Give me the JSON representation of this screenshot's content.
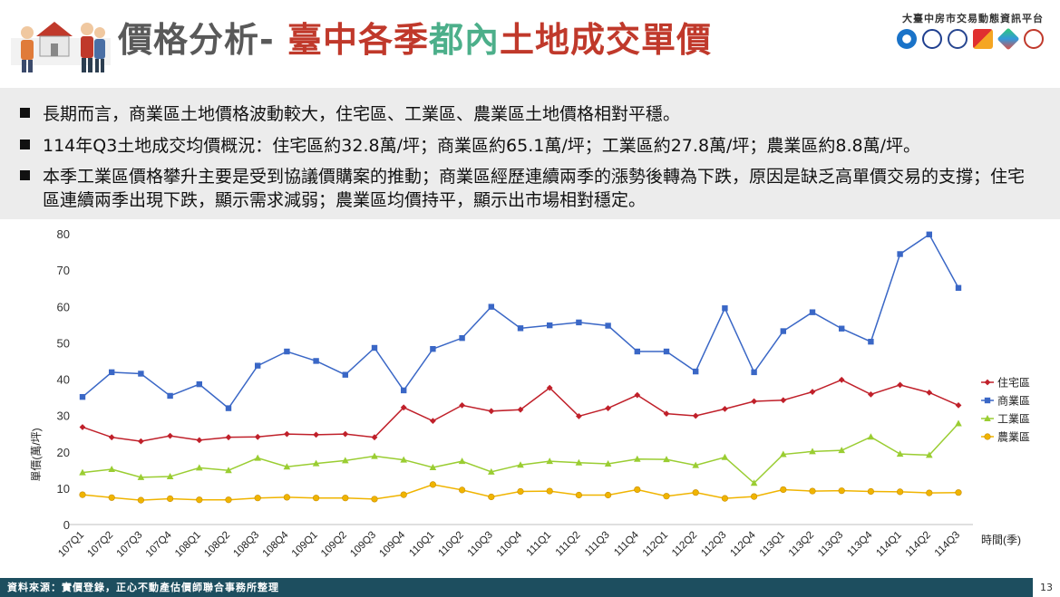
{
  "header": {
    "title_prefix": "價格分析- ",
    "title_part1": "臺中各季",
    "title_part2": "都內",
    "title_part3": "土地成交單價",
    "org_name": "大臺中房市交易動態資訊平台",
    "brand_colors": {
      "title_gray": "#595959",
      "title_red": "#c0392b",
      "title_green": "#4caf8a"
    }
  },
  "bullets": [
    "長期而言，商業區土地價格波動較大，住宅區、工業區、農業區土地價格相對平穩。",
    "114年Q3土地成交均價概況：住宅區約32.8萬/坪；商業區約65.1萬/坪；工業區約27.8萬/坪；農業區約8.8萬/坪。",
    "本季工業區價格攀升主要是受到協議價購案的推動；商業區經歷連續兩季的漲勢後轉為下跌，原因是缺乏高單價交易的支撐；住宅區連續兩季出現下跌，顯示需求減弱；農業區均價持平，顯示出市場相對穩定。"
  ],
  "chart_data": {
    "type": "line",
    "categories": [
      "107Q1",
      "107Q2",
      "107Q3",
      "107Q4",
      "108Q1",
      "108Q2",
      "108Q3",
      "108Q4",
      "109Q1",
      "109Q2",
      "109Q3",
      "109Q4",
      "110Q1",
      "110Q2",
      "110Q3",
      "110Q4",
      "111Q1",
      "111Q2",
      "111Q3",
      "111Q4",
      "112Q1",
      "112Q2",
      "112Q3",
      "112Q4",
      "113Q1",
      "113Q2",
      "113Q3",
      "113Q4",
      "114Q1",
      "114Q2",
      "114Q3"
    ],
    "ylim": [
      0,
      80
    ],
    "yticks": [
      0,
      10,
      20,
      30,
      40,
      50,
      60,
      70,
      80
    ],
    "ylabel": "單價(萬/坪)",
    "xlabel": "時間(季)",
    "grid": false,
    "legend_position": "right",
    "series": [
      {
        "name": "住宅區",
        "color": "#c0202a",
        "marker": "diamond",
        "values": [
          26.8,
          24.0,
          22.9,
          24.4,
          23.2,
          24.0,
          24.1,
          24.9,
          24.7,
          24.9,
          24.0,
          32.2,
          28.5,
          32.8,
          31.2,
          31.6,
          37.6,
          29.8,
          32.0,
          35.6,
          30.5,
          29.9,
          31.8,
          33.9,
          34.2,
          36.5,
          39.8,
          35.8,
          38.4,
          36.3,
          32.8
        ]
      },
      {
        "name": "商業區",
        "color": "#3a67c6",
        "marker": "square",
        "values": [
          35.1,
          41.9,
          41.5,
          35.4,
          38.6,
          32.0,
          43.7,
          47.6,
          45.0,
          41.2,
          48.6,
          36.9,
          48.3,
          51.3,
          59.9,
          54.0,
          54.8,
          55.6,
          54.7,
          47.6,
          47.6,
          42.1,
          59.5,
          41.9,
          53.2,
          58.4,
          53.9,
          50.3,
          74.4,
          79.8,
          65.1
        ]
      },
      {
        "name": "工業區",
        "color": "#9acd32",
        "marker": "triangle",
        "values": [
          14.3,
          15.2,
          13.0,
          13.2,
          15.6,
          14.9,
          18.3,
          15.9,
          16.8,
          17.6,
          18.8,
          17.8,
          15.7,
          17.4,
          14.5,
          16.4,
          17.4,
          17.0,
          16.7,
          18.0,
          17.9,
          16.3,
          18.5,
          11.4,
          19.3,
          20.1,
          20.4,
          24.1,
          19.4,
          19.1,
          27.8
        ]
      },
      {
        "name": "農業區",
        "color": "#f0b400",
        "marker": "circle",
        "values": [
          8.2,
          7.4,
          6.7,
          7.1,
          6.8,
          6.8,
          7.3,
          7.5,
          7.3,
          7.3,
          7.0,
          8.2,
          11.0,
          9.5,
          7.6,
          9.1,
          9.2,
          8.1,
          8.1,
          9.6,
          7.8,
          8.8,
          7.2,
          7.7,
          9.6,
          9.2,
          9.3,
          9.1,
          9.0,
          8.7,
          8.8
        ]
      }
    ]
  },
  "footer": {
    "source": "資料來源：實價登錄，正心不動產估價師聯合事務所整理",
    "page_number": "13"
  }
}
